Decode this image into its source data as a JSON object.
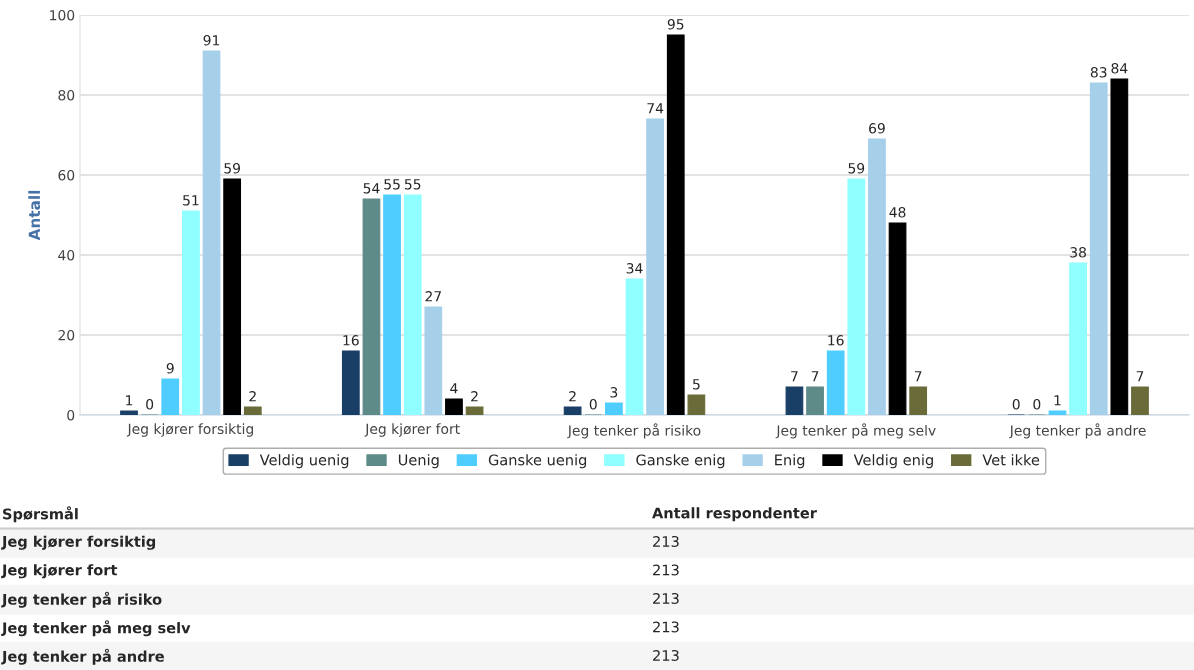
{
  "chart_data": {
    "type": "bar",
    "ylabel": "Antall",
    "categories": [
      "Jeg kjører forsiktig",
      "Jeg kjører fort",
      "Jeg tenker på risiko",
      "Jeg tenker på meg selv",
      "Jeg tenker på andre"
    ],
    "series": [
      {
        "name": "Veldig uenig",
        "color": "#1a3f66",
        "values": [
          1,
          16,
          2,
          7,
          0
        ]
      },
      {
        "name": "Uenig",
        "color": "#5e8a87",
        "values": [
          0,
          54,
          0,
          7,
          0
        ]
      },
      {
        "name": "Ganske uenig",
        "color": "#4fcdff",
        "values": [
          9,
          55,
          3,
          16,
          1
        ]
      },
      {
        "name": "Ganske enig",
        "color": "#8fffff",
        "values": [
          51,
          55,
          34,
          59,
          38
        ]
      },
      {
        "name": "Enig",
        "color": "#a6cfea",
        "values": [
          91,
          27,
          74,
          69,
          83
        ]
      },
      {
        "name": "Veldig enig",
        "color": "#000000",
        "values": [
          59,
          4,
          95,
          48,
          84
        ]
      },
      {
        "name": "Vet ikke",
        "color": "#6b6b3a",
        "values": [
          2,
          2,
          5,
          7,
          7
        ]
      }
    ],
    "ylim": [
      0,
      100
    ],
    "yticks": [
      0,
      20,
      40,
      60,
      80,
      100
    ],
    "grid": "y",
    "legend": "bottom",
    "data_labels": true,
    "annotations": [
      "Spørsmål",
      "Antall respondenter",
      "Jeg kjører forsiktig",
      "213",
      "Jeg kjører fort",
      "213",
      "Jeg tenker på risiko",
      "213",
      "Jeg tenker på meg selv",
      "213",
      "Jeg tenker på andre",
      "213"
    ]
  }
}
